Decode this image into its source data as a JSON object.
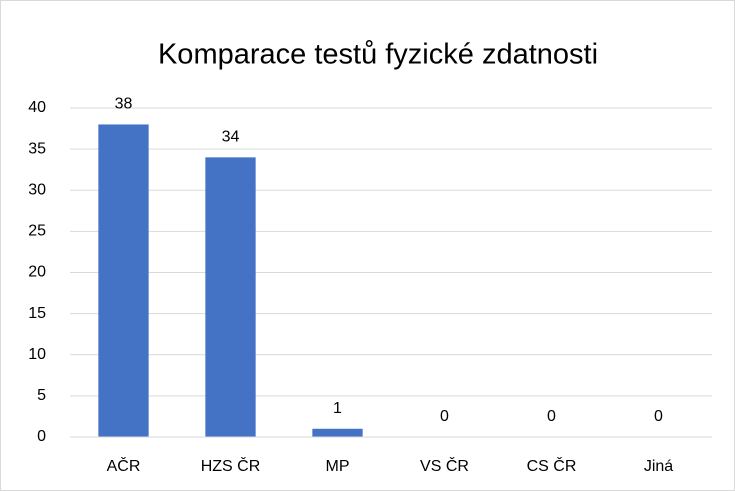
{
  "chart_data": {
    "type": "bar",
    "title": "Komparace testů fyzické zdatnosti",
    "categories": [
      "AČR",
      "HZS ČR",
      "MP",
      "VS ČR",
      "CS ČR",
      "Jiná"
    ],
    "values": [
      38,
      34,
      1,
      0,
      0,
      0
    ],
    "color": "#4472c4",
    "ylim": [
      0,
      40
    ],
    "yticks": [
      0,
      5,
      10,
      15,
      20,
      25,
      30,
      35,
      40
    ],
    "grid": true
  }
}
